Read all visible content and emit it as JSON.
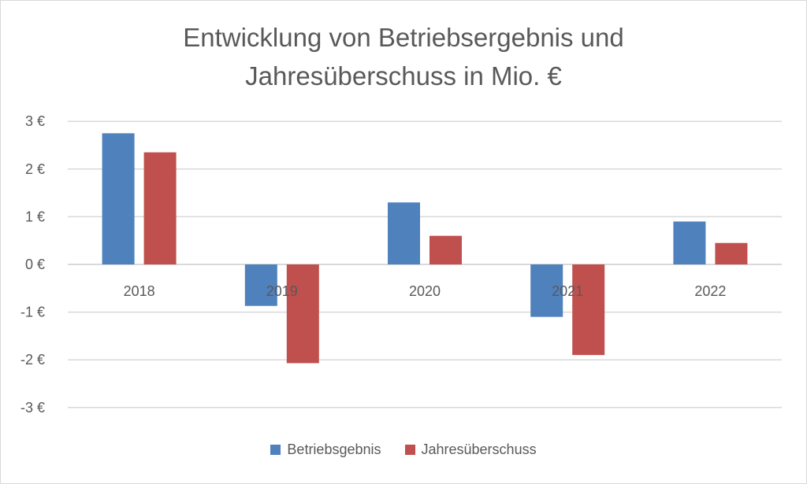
{
  "chart_data": {
    "type": "bar",
    "title": "Entwicklung von Betriebsergebnis und Jahresüberschuss in Mio. €",
    "title_lines": [
      "Entwicklung von Betriebsergebnis und",
      "Jahresüberschuss in Mio. €"
    ],
    "categories": [
      "2018",
      "2019",
      "2020",
      "2021",
      "2022"
    ],
    "series": [
      {
        "name": "Betriebsgebnis",
        "color": "#4f81bd",
        "values": [
          2.75,
          -0.87,
          1.3,
          -1.1,
          0.9
        ]
      },
      {
        "name": "Jahresüberschuss",
        "color": "#c0504d",
        "values": [
          2.35,
          -2.07,
          0.6,
          -1.9,
          0.45
        ]
      }
    ],
    "yticks": [
      3,
      2,
      1,
      0,
      -1,
      -2,
      -3
    ],
    "ytick_labels": [
      "3 €",
      "2 €",
      "1 €",
      "0 €",
      "-1 €",
      "-2 €",
      "-3 €"
    ],
    "ylim": [
      -3,
      3
    ],
    "xlabel": "",
    "ylabel": "",
    "grid": true,
    "legend_position": "bottom"
  }
}
